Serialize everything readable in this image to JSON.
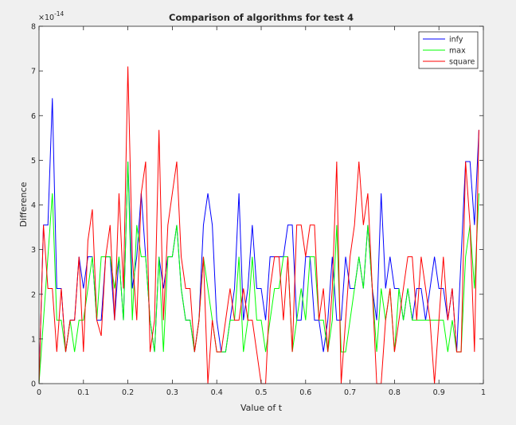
{
  "window": {
    "background": "#f0f0f0"
  },
  "chart_data": {
    "type": "line",
    "title": "Comparison of algorithms for test 4",
    "xlabel": "Value of t",
    "ylabel": "Difference",
    "exponent_label": "×10",
    "exponent": "-14",
    "xlim": [
      0,
      1
    ],
    "ylim": [
      0,
      8
    ],
    "xticks": [
      0,
      0.1,
      0.2,
      0.3,
      0.4,
      0.5,
      0.6,
      0.7,
      0.8,
      0.9,
      1
    ],
    "xtick_labels": [
      "0",
      "0.1",
      "0.2",
      "0.3",
      "0.4",
      "0.5",
      "0.6",
      "0.7",
      "0.8",
      "0.9",
      "1"
    ],
    "yticks": [
      0,
      1,
      2,
      3,
      4,
      5,
      6,
      7,
      8
    ],
    "ytick_labels": [
      "0",
      "1",
      "2",
      "3",
      "4",
      "5",
      "6",
      "7",
      "8"
    ],
    "grid": false,
    "legend_position": "top-right",
    "series": [
      {
        "name": "infy",
        "color": "#0000ff",
        "points": [
          [
            0,
            0
          ],
          [
            0.01,
            3.55
          ],
          [
            0.02,
            3.55
          ],
          [
            0.03,
            6.39
          ],
          [
            0.04,
            2.13
          ],
          [
            0.05,
            2.13
          ],
          [
            0.06,
            0.71
          ],
          [
            0.07,
            1.42
          ],
          [
            0.08,
            1.42
          ],
          [
            0.09,
            2.84
          ],
          [
            0.1,
            2.13
          ],
          [
            0.11,
            2.84
          ],
          [
            0.12,
            2.84
          ],
          [
            0.13,
            1.42
          ],
          [
            0.14,
            1.42
          ],
          [
            0.15,
            2.84
          ],
          [
            0.16,
            2.84
          ],
          [
            0.17,
            1.42
          ],
          [
            0.18,
            2.84
          ],
          [
            0.19,
            1.42
          ],
          [
            0.2,
            4.97
          ],
          [
            0.21,
            2.13
          ],
          [
            0.22,
            2.84
          ],
          [
            0.23,
            4.26
          ],
          [
            0.24,
            2.84
          ],
          [
            0.25,
            1.42
          ],
          [
            0.26,
            0.71
          ],
          [
            0.27,
            2.84
          ],
          [
            0.28,
            2.13
          ],
          [
            0.29,
            2.84
          ],
          [
            0.3,
            2.84
          ],
          [
            0.31,
            3.55
          ],
          [
            0.32,
            2.13
          ],
          [
            0.33,
            1.42
          ],
          [
            0.34,
            1.42
          ],
          [
            0.35,
            0.71
          ],
          [
            0.36,
            1.42
          ],
          [
            0.37,
            3.55
          ],
          [
            0.38,
            4.26
          ],
          [
            0.39,
            3.55
          ],
          [
            0.4,
            1.42
          ],
          [
            0.41,
            0.71
          ],
          [
            0.42,
            0.71
          ],
          [
            0.43,
            1.42
          ],
          [
            0.44,
            2.13
          ],
          [
            0.45,
            4.26
          ],
          [
            0.46,
            1.42
          ],
          [
            0.47,
            2.13
          ],
          [
            0.48,
            3.55
          ],
          [
            0.49,
            2.13
          ],
          [
            0.5,
            2.13
          ],
          [
            0.51,
            1.42
          ],
          [
            0.52,
            2.84
          ],
          [
            0.53,
            2.84
          ],
          [
            0.54,
            2.84
          ],
          [
            0.55,
            2.84
          ],
          [
            0.56,
            3.55
          ],
          [
            0.57,
            3.55
          ],
          [
            0.58,
            1.42
          ],
          [
            0.59,
            1.42
          ],
          [
            0.6,
            2.84
          ],
          [
            0.61,
            2.84
          ],
          [
            0.62,
            1.42
          ],
          [
            0.63,
            1.42
          ],
          [
            0.64,
            0.71
          ],
          [
            0.65,
            1.42
          ],
          [
            0.66,
            2.84
          ],
          [
            0.67,
            1.42
          ],
          [
            0.68,
            1.42
          ],
          [
            0.69,
            2.84
          ],
          [
            0.7,
            2.13
          ],
          [
            0.71,
            2.13
          ],
          [
            0.72,
            2.84
          ],
          [
            0.73,
            2.13
          ],
          [
            0.74,
            3.55
          ],
          [
            0.75,
            2.13
          ],
          [
            0.76,
            1.42
          ],
          [
            0.77,
            4.26
          ],
          [
            0.78,
            2.13
          ],
          [
            0.79,
            2.84
          ],
          [
            0.8,
            2.13
          ],
          [
            0.81,
            2.13
          ],
          [
            0.82,
            1.42
          ],
          [
            0.83,
            2.13
          ],
          [
            0.84,
            1.42
          ],
          [
            0.85,
            2.13
          ],
          [
            0.86,
            2.13
          ],
          [
            0.87,
            1.42
          ],
          [
            0.88,
            2.13
          ],
          [
            0.89,
            2.84
          ],
          [
            0.9,
            2.13
          ],
          [
            0.91,
            2.13
          ],
          [
            0.92,
            1.42
          ],
          [
            0.93,
            2.13
          ],
          [
            0.94,
            0.71
          ],
          [
            0.95,
            2.84
          ],
          [
            0.96,
            4.97
          ],
          [
            0.97,
            4.97
          ],
          [
            0.98,
            3.55
          ],
          [
            0.99,
            5.68
          ]
        ]
      },
      {
        "name": "max",
        "color": "#00ff00",
        "points": [
          [
            0,
            0
          ],
          [
            0.01,
            1.42
          ],
          [
            0.02,
            2.84
          ],
          [
            0.03,
            4.26
          ],
          [
            0.04,
            1.42
          ],
          [
            0.05,
            1.42
          ],
          [
            0.06,
            0.71
          ],
          [
            0.07,
            1.42
          ],
          [
            0.08,
            0.71
          ],
          [
            0.09,
            1.42
          ],
          [
            0.1,
            1.42
          ],
          [
            0.11,
            2.13
          ],
          [
            0.12,
            2.84
          ],
          [
            0.13,
            1.42
          ],
          [
            0.14,
            2.84
          ],
          [
            0.15,
            2.84
          ],
          [
            0.16,
            2.84
          ],
          [
            0.17,
            2.13
          ],
          [
            0.18,
            2.84
          ],
          [
            0.19,
            1.42
          ],
          [
            0.2,
            4.97
          ],
          [
            0.21,
            1.42
          ],
          [
            0.22,
            3.55
          ],
          [
            0.23,
            2.84
          ],
          [
            0.24,
            2.84
          ],
          [
            0.25,
            1.42
          ],
          [
            0.26,
            0.71
          ],
          [
            0.27,
            2.84
          ],
          [
            0.28,
            0.71
          ],
          [
            0.29,
            2.84
          ],
          [
            0.3,
            2.84
          ],
          [
            0.31,
            3.55
          ],
          [
            0.32,
            2.13
          ],
          [
            0.33,
            1.42
          ],
          [
            0.34,
            1.42
          ],
          [
            0.35,
            0.71
          ],
          [
            0.36,
            1.42
          ],
          [
            0.37,
            2.84
          ],
          [
            0.38,
            2.13
          ],
          [
            0.39,
            1.42
          ],
          [
            0.4,
            0.71
          ],
          [
            0.41,
            0.71
          ],
          [
            0.42,
            0.71
          ],
          [
            0.43,
            1.42
          ],
          [
            0.44,
            1.42
          ],
          [
            0.45,
            2.84
          ],
          [
            0.46,
            0.71
          ],
          [
            0.47,
            1.42
          ],
          [
            0.48,
            2.84
          ],
          [
            0.49,
            1.42
          ],
          [
            0.5,
            1.42
          ],
          [
            0.51,
            0.71
          ],
          [
            0.52,
            1.42
          ],
          [
            0.53,
            2.13
          ],
          [
            0.54,
            2.13
          ],
          [
            0.55,
            2.84
          ],
          [
            0.56,
            2.84
          ],
          [
            0.57,
            0.71
          ],
          [
            0.58,
            1.42
          ],
          [
            0.59,
            2.13
          ],
          [
            0.6,
            1.42
          ],
          [
            0.61,
            2.84
          ],
          [
            0.62,
            2.84
          ],
          [
            0.63,
            1.42
          ],
          [
            0.64,
            1.42
          ],
          [
            0.65,
            0.71
          ],
          [
            0.66,
            1.42
          ],
          [
            0.67,
            3.55
          ],
          [
            0.68,
            0.71
          ],
          [
            0.69,
            0.71
          ],
          [
            0.7,
            1.42
          ],
          [
            0.71,
            2.13
          ],
          [
            0.72,
            2.84
          ],
          [
            0.73,
            2.13
          ],
          [
            0.74,
            3.55
          ],
          [
            0.75,
            2.13
          ],
          [
            0.76,
            0.71
          ],
          [
            0.77,
            2.13
          ],
          [
            0.78,
            1.42
          ],
          [
            0.79,
            2.13
          ],
          [
            0.8,
            0.71
          ],
          [
            0.81,
            2.13
          ],
          [
            0.82,
            1.42
          ],
          [
            0.83,
            2.13
          ],
          [
            0.84,
            1.42
          ],
          [
            0.85,
            1.42
          ],
          [
            0.86,
            1.42
          ],
          [
            0.87,
            1.42
          ],
          [
            0.88,
            1.42
          ],
          [
            0.89,
            1.42
          ],
          [
            0.9,
            1.42
          ],
          [
            0.91,
            1.42
          ],
          [
            0.92,
            0.71
          ],
          [
            0.93,
            1.42
          ],
          [
            0.94,
            0.71
          ],
          [
            0.95,
            0.71
          ],
          [
            0.96,
            2.84
          ],
          [
            0.97,
            3.55
          ],
          [
            0.98,
            2.13
          ],
          [
            0.99,
            4.26
          ]
        ]
      },
      {
        "name": "square",
        "color": "#ff0000",
        "points": [
          [
            0,
            0
          ],
          [
            0.01,
            3.55
          ],
          [
            0.02,
            2.13
          ],
          [
            0.03,
            2.13
          ],
          [
            0.04,
            0.71
          ],
          [
            0.05,
            2.13
          ],
          [
            0.06,
            0.71
          ],
          [
            0.07,
            1.42
          ],
          [
            0.08,
            1.42
          ],
          [
            0.09,
            2.84
          ],
          [
            0.1,
            0.71
          ],
          [
            0.11,
            3.2
          ],
          [
            0.12,
            3.9
          ],
          [
            0.13,
            1.42
          ],
          [
            0.14,
            1.07
          ],
          [
            0.15,
            2.84
          ],
          [
            0.16,
            3.55
          ],
          [
            0.17,
            1.42
          ],
          [
            0.18,
            4.26
          ],
          [
            0.19,
            2.13
          ],
          [
            0.2,
            7.1
          ],
          [
            0.21,
            2.84
          ],
          [
            0.22,
            1.42
          ],
          [
            0.23,
            4.26
          ],
          [
            0.24,
            4.97
          ],
          [
            0.25,
            0.71
          ],
          [
            0.26,
            1.42
          ],
          [
            0.27,
            5.68
          ],
          [
            0.28,
            1.42
          ],
          [
            0.29,
            3.55
          ],
          [
            0.3,
            4.26
          ],
          [
            0.31,
            4.97
          ],
          [
            0.32,
            2.84
          ],
          [
            0.33,
            2.13
          ],
          [
            0.34,
            2.13
          ],
          [
            0.35,
            0.71
          ],
          [
            0.36,
            1.42
          ],
          [
            0.37,
            2.84
          ],
          [
            0.38,
            0
          ],
          [
            0.39,
            1.42
          ],
          [
            0.4,
            0.71
          ],
          [
            0.41,
            0.71
          ],
          [
            0.42,
            1.42
          ],
          [
            0.43,
            2.13
          ],
          [
            0.44,
            1.42
          ],
          [
            0.45,
            1.42
          ],
          [
            0.46,
            2.13
          ],
          [
            0.47,
            1.42
          ],
          [
            0.48,
            1.42
          ],
          [
            0.49,
            0.71
          ],
          [
            0.5,
            0
          ],
          [
            0.51,
            0
          ],
          [
            0.52,
            2.13
          ],
          [
            0.53,
            2.84
          ],
          [
            0.54,
            2.84
          ],
          [
            0.55,
            1.42
          ],
          [
            0.56,
            2.84
          ],
          [
            0.57,
            0.71
          ],
          [
            0.58,
            3.55
          ],
          [
            0.59,
            3.55
          ],
          [
            0.6,
            2.84
          ],
          [
            0.61,
            3.55
          ],
          [
            0.62,
            3.55
          ],
          [
            0.63,
            1.42
          ],
          [
            0.64,
            2.13
          ],
          [
            0.65,
            0.71
          ],
          [
            0.66,
            2.13
          ],
          [
            0.67,
            4.97
          ],
          [
            0.68,
            0
          ],
          [
            0.69,
            1.42
          ],
          [
            0.7,
            2.84
          ],
          [
            0.71,
            3.55
          ],
          [
            0.72,
            4.97
          ],
          [
            0.73,
            3.55
          ],
          [
            0.74,
            4.26
          ],
          [
            0.75,
            2.13
          ],
          [
            0.76,
            0
          ],
          [
            0.77,
            0
          ],
          [
            0.78,
            1.42
          ],
          [
            0.79,
            2.13
          ],
          [
            0.8,
            0.71
          ],
          [
            0.81,
            1.42
          ],
          [
            0.82,
            2.13
          ],
          [
            0.83,
            2.84
          ],
          [
            0.84,
            2.84
          ],
          [
            0.85,
            1.42
          ],
          [
            0.86,
            2.84
          ],
          [
            0.87,
            2.13
          ],
          [
            0.88,
            1.42
          ],
          [
            0.89,
            0
          ],
          [
            0.9,
            1.42
          ],
          [
            0.91,
            2.84
          ],
          [
            0.92,
            1.42
          ],
          [
            0.93,
            2.13
          ],
          [
            0.94,
            0.71
          ],
          [
            0.95,
            0.71
          ],
          [
            0.96,
            4.97
          ],
          [
            0.97,
            3.55
          ],
          [
            0.98,
            0.71
          ],
          [
            0.99,
            5.68
          ]
        ]
      }
    ]
  }
}
